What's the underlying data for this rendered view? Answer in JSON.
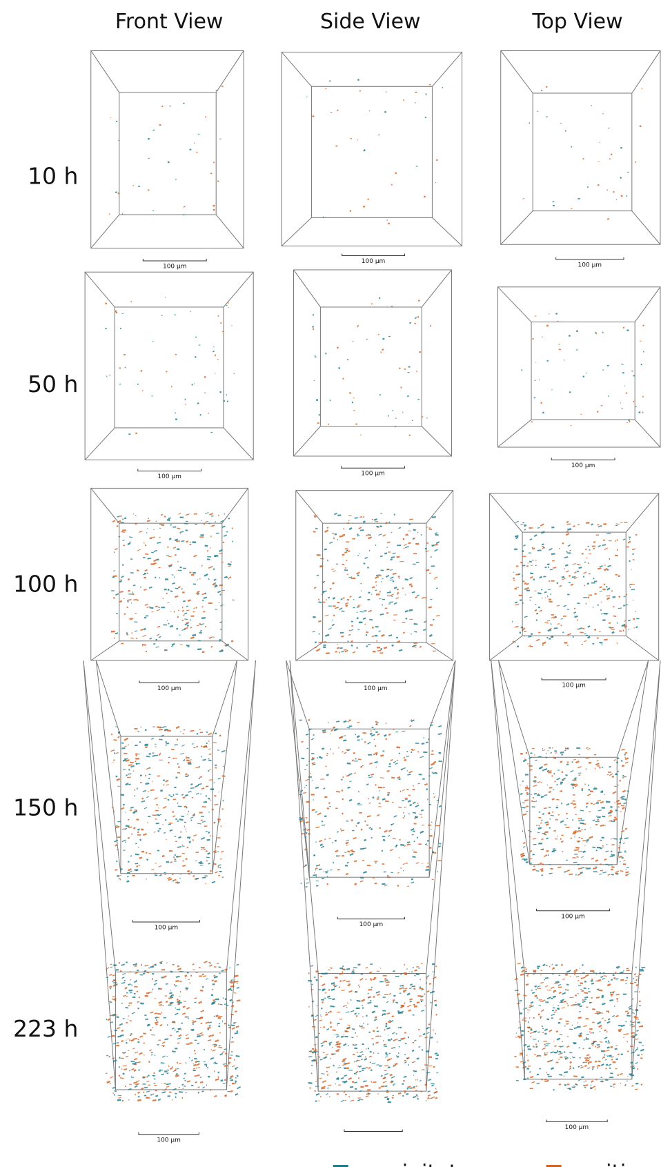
{
  "columns": [
    "Front View",
    "Side View",
    "Top View"
  ],
  "rows": [
    {
      "label": "10 h",
      "panels": [
        {
          "scale_label": "100 µm"
        },
        {
          "scale_label": "100 µm"
        },
        {
          "scale_label": "100 µm"
        }
      ]
    },
    {
      "label": "50 h",
      "panels": [
        {
          "scale_label": "100 µm"
        },
        {
          "scale_label": "100 µm"
        },
        {
          "scale_label": "100 µm"
        }
      ]
    },
    {
      "label": "100 h",
      "panels": [
        {
          "scale_label": "100 µm"
        },
        {
          "scale_label": "100 µm"
        },
        {
          "scale_label": "100 µm"
        }
      ]
    },
    {
      "label": "150 h",
      "panels": [
        {
          "scale_label": "100 µm"
        },
        {
          "scale_label": "100 µm"
        },
        {
          "scale_label": "100 µm"
        }
      ]
    },
    {
      "label": "223 h",
      "panels": [
        {
          "scale_label": "100 µm"
        },
        {},
        {
          "scale_label": "100 µm"
        }
      ]
    }
  ],
  "legend": [
    {
      "label": "precipitates",
      "color": "#1b7a8a"
    },
    {
      "label": "cavities",
      "color": "#d2601f"
    }
  ]
}
